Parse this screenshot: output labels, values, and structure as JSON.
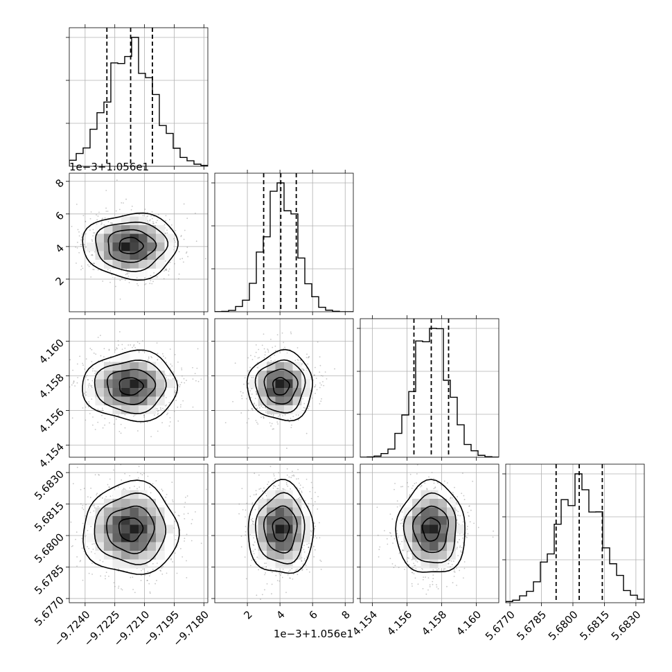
{
  "chart_data": {
    "type": "corner",
    "parameters": [
      {
        "id": "p1",
        "range": [
          -9.7248,
          -9.7178
        ],
        "mean": -9.7217,
        "sd": 0.0012,
        "quantiles": [
          -9.7229,
          -9.7217,
          -9.7206
        ],
        "ticks": [
          -9.724,
          -9.7225,
          -9.721,
          -9.7195,
          -9.718
        ],
        "tick_labels": [
          "−9.7240",
          "−9.7225",
          "−9.7210",
          "−9.7195",
          "−9.7180"
        ],
        "offset_label": ""
      },
      {
        "id": "p2",
        "range": [
          0.0,
          8.5
        ],
        "mean": 4.05,
        "sd": 1.0,
        "quantiles": [
          3.0,
          4.05,
          5.0
        ],
        "ticks": [
          2,
          4,
          6,
          8
        ],
        "tick_labels": [
          "2",
          "4",
          "6",
          "8"
        ],
        "offset_label": "1e−3+1.056e1"
      },
      {
        "id": "p3",
        "range": [
          4.1533,
          4.1613
        ],
        "mean": 4.1574,
        "sd": 0.001,
        "quantiles": [
          4.1564,
          4.1574,
          4.1584
        ],
        "ticks": [
          4.154,
          4.156,
          4.158,
          4.16
        ],
        "tick_labels": [
          "4.154",
          "4.156",
          "4.158",
          "4.160"
        ],
        "offset_label": ""
      },
      {
        "id": "p4",
        "range": [
          5.6768,
          5.6834
        ],
        "mean": 5.6803,
        "sd": 0.0011,
        "quantiles": [
          5.6792,
          5.6803,
          5.6814
        ],
        "ticks": [
          5.677,
          5.6785,
          5.68,
          5.6815,
          5.683
        ],
        "tick_labels": [
          "5.6770",
          "5.6785",
          "5.6800",
          "5.6815",
          "5.6830"
        ],
        "offset_label": ""
      }
    ],
    "histogram_bins": 20,
    "contour_levels": [
      0.5,
      1.0,
      1.5,
      2.0
    ],
    "grid": true,
    "colors": {
      "line": "#000000",
      "grid": "#b0b0b0",
      "points": "#808080"
    }
  }
}
